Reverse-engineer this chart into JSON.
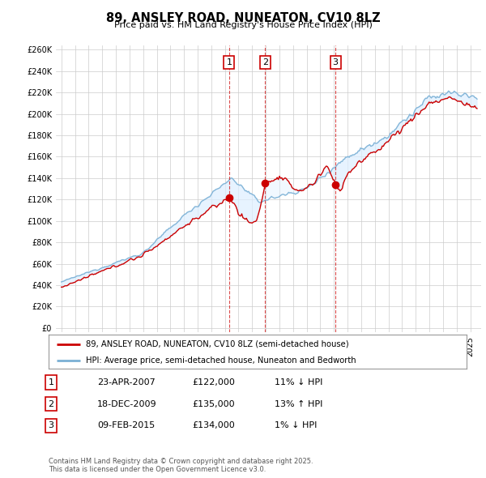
{
  "title": "89, ANSLEY ROAD, NUNEATON, CV10 8LZ",
  "subtitle": "Price paid vs. HM Land Registry's House Price Index (HPI)",
  "legend_line1": "89, ANSLEY ROAD, NUNEATON, CV10 8LZ (semi-detached house)",
  "legend_line2": "HPI: Average price, semi-detached house, Nuneaton and Bedworth",
  "transactions": [
    {
      "num": 1,
      "date": "23-APR-2007",
      "price": 122000,
      "pct": "11%",
      "dir": "↓",
      "year": 2007.31
    },
    {
      "num": 2,
      "date": "18-DEC-2009",
      "price": 135000,
      "pct": "13%",
      "dir": "↑",
      "year": 2009.96
    },
    {
      "num": 3,
      "date": "09-FEB-2015",
      "price": 134000,
      "pct": "1%",
      "dir": "↓",
      "year": 2015.11
    }
  ],
  "footer": "Contains HM Land Registry data © Crown copyright and database right 2025.\nThis data is licensed under the Open Government Licence v3.0.",
  "ylim": [
    0,
    260000
  ],
  "yticks": [
    0,
    20000,
    40000,
    60000,
    80000,
    100000,
    120000,
    140000,
    160000,
    180000,
    200000,
    220000,
    240000,
    260000
  ],
  "background_color": "#ffffff",
  "grid_color": "#cccccc",
  "red_color": "#cc0000",
  "blue_color": "#7ab0d4",
  "fill_color": "#ddeeff"
}
